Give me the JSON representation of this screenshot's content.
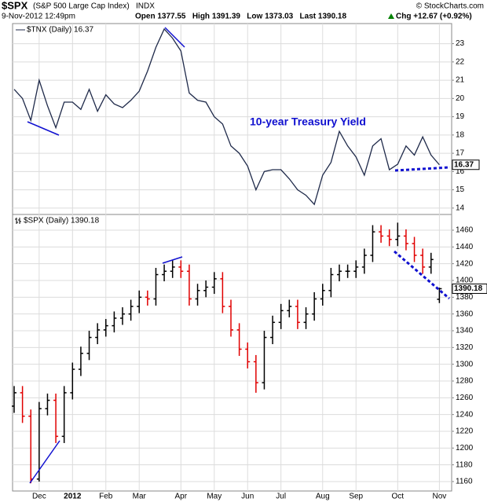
{
  "header": {
    "title": "$SPX",
    "subtitle": "(S&P 500 Large Cap Index)",
    "exchange": "INDX",
    "date": "9-Nov-2012 12:49pm",
    "quote": "Open 1377.55   High 1391.39   Low 1373.03   Last 1390.18",
    "change": "Chg +12.67 (+0.92%)",
    "credit": "© StockCharts.com"
  },
  "chart_data": [
    {
      "type": "line",
      "annotation": "10-year Treasury Yield",
      "grid": true,
      "series": [
        {
          "name": "$TNX (Daily) 16.37",
          "color": "#1f2a4a",
          "values": [
            20.5,
            20.0,
            18.8,
            21.0,
            19.6,
            18.4,
            19.8,
            19.8,
            19.4,
            20.5,
            19.3,
            20.2,
            19.7,
            19.5,
            19.9,
            20.4,
            21.5,
            22.8,
            23.8,
            23.3,
            22.6,
            20.3,
            19.9,
            19.8,
            19.0,
            18.6,
            17.4,
            17.0,
            16.3,
            15.0,
            16.0,
            16.1,
            16.1,
            15.6,
            15.0,
            14.7,
            14.2,
            15.8,
            16.5,
            18.2,
            17.4,
            16.8,
            15.8,
            17.4,
            17.8,
            16.1,
            16.4,
            17.4,
            16.9,
            17.9,
            16.9,
            16.37
          ]
        }
      ],
      "ylim": [
        13.65,
        24.1
      ],
      "yticks": [
        14,
        15,
        16,
        17,
        18,
        19,
        20,
        21,
        22,
        23
      ]
    },
    {
      "type": "ohlc",
      "grid": true,
      "categories": [
        null,
        null,
        null,
        "Dec",
        null,
        null,
        null,
        "2012",
        null,
        null,
        null,
        "Feb",
        null,
        null,
        null,
        "Mar",
        null,
        null,
        null,
        null,
        "Apr",
        null,
        null,
        null,
        "May",
        null,
        null,
        null,
        "Jun",
        null,
        null,
        null,
        "Jul",
        null,
        null,
        null,
        null,
        "Aug",
        null,
        null,
        null,
        "Sep",
        null,
        null,
        null,
        null,
        "Oct",
        null,
        null,
        null,
        null,
        "Nov",
        null
      ],
      "series": [
        {
          "name": "$SPX (Daily) 1390.18",
          "up_color": "#000000",
          "down_color": "#e00000",
          "open": [
            1250,
            1266,
            1238,
            1163,
            1247,
            1257,
            1214,
            1266,
            1294,
            1313,
            1332,
            1341,
            1346,
            1355,
            1360,
            1369,
            1380,
            1378,
            1407,
            1411,
            1416,
            1411,
            1378,
            1388,
            1392,
            1402,
            1369,
            1341,
            1318,
            1303,
            1278,
            1332,
            1350,
            1364,
            1369,
            1350,
            1360,
            1378,
            1388,
            1407,
            1411,
            1411,
            1416,
            1430,
            1458,
            1453,
            1449,
            1453,
            1444,
            1430,
            1416,
            1377.55
          ],
          "high": [
            1274,
            1274,
            1246,
            1255,
            1265,
            1265,
            1274,
            1302,
            1321,
            1340,
            1349,
            1354,
            1363,
            1368,
            1377,
            1388,
            1388,
            1415,
            1419,
            1424,
            1424,
            1419,
            1396,
            1400,
            1410,
            1410,
            1377,
            1349,
            1326,
            1311,
            1340,
            1358,
            1372,
            1377,
            1377,
            1368,
            1386,
            1396,
            1415,
            1419,
            1419,
            1424,
            1438,
            1466,
            1466,
            1461,
            1469,
            1461,
            1452,
            1438,
            1433,
            1391.39
          ],
          "low": [
            1242,
            1230,
            1158,
            1160,
            1239,
            1206,
            1206,
            1258,
            1286,
            1305,
            1324,
            1333,
            1338,
            1347,
            1352,
            1361,
            1370,
            1370,
            1399,
            1403,
            1403,
            1370,
            1370,
            1380,
            1384,
            1361,
            1333,
            1310,
            1295,
            1266,
            1270,
            1324,
            1342,
            1356,
            1342,
            1342,
            1352,
            1370,
            1380,
            1399,
            1403,
            1403,
            1408,
            1422,
            1445,
            1441,
            1441,
            1436,
            1422,
            1408,
            1408,
            1373.03
          ],
          "close": [
            1266,
            1238,
            1163,
            1247,
            1257,
            1214,
            1266,
            1294,
            1313,
            1332,
            1341,
            1346,
            1355,
            1360,
            1369,
            1380,
            1378,
            1407,
            1411,
            1416,
            1411,
            1378,
            1388,
            1392,
            1402,
            1369,
            1341,
            1318,
            1303,
            1278,
            1332,
            1350,
            1364,
            1369,
            1350,
            1360,
            1378,
            1388,
            1407,
            1411,
            1411,
            1416,
            1430,
            1458,
            1453,
            1449,
            1453,
            1444,
            1430,
            1416,
            1425,
            1390.18
          ]
        }
      ],
      "ylim": [
        1148.75,
        1478.75
      ],
      "yticks": [
        1160,
        1180,
        1200,
        1220,
        1240,
        1260,
        1280,
        1300,
        1320,
        1340,
        1360,
        1380,
        1400,
        1420,
        1440,
        1460
      ]
    }
  ]
}
